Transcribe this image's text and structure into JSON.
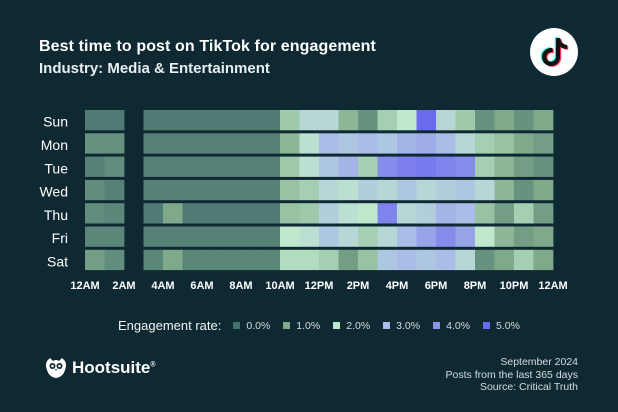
{
  "header": {
    "title": "Best time to post on TikTok for engagement",
    "subtitle": "Industry: Media & Entertainment"
  },
  "legend": {
    "title": "Engagement rate:",
    "items": [
      {
        "label": "0.0%",
        "color": "#43706f"
      },
      {
        "label": "1.0%",
        "color": "#7fa98a"
      },
      {
        "label": "2.0%",
        "color": "#bfe8cc"
      },
      {
        "label": "3.0%",
        "color": "#a9bde6"
      },
      {
        "label": "4.0%",
        "color": "#8d94ea"
      },
      {
        "label": "5.0%",
        "color": "#6a6aef"
      }
    ]
  },
  "brand": {
    "name": "Hootsuite",
    "reg": "®"
  },
  "footer": {
    "line1": "September 2024",
    "line2": "Posts from the last 365 days",
    "line3": "Source: Critical Truth"
  },
  "chart_data": {
    "type": "heatmap",
    "title": "Best time to post on TikTok for engagement",
    "y_categories": [
      "Sun",
      "Mon",
      "Tue",
      "Wed",
      "Thu",
      "Fri",
      "Sat"
    ],
    "x_tick_labels": [
      "12AM",
      "2AM",
      "4AM",
      "6AM",
      "8AM",
      "10AM",
      "12PM",
      "2PM",
      "4PM",
      "6PM",
      "8PM",
      "10PM",
      "12AM"
    ],
    "x_hours": 24,
    "missing_hours": [
      2
    ],
    "value_range": [
      0,
      5
    ],
    "unit": "%",
    "values": [
      [
        0.2,
        0.2,
        null,
        0.2,
        0.2,
        0.2,
        0.2,
        0.2,
        0.2,
        0.2,
        1.5,
        2.4,
        2.4,
        1.2,
        0.6,
        1.6,
        2.0,
        5.0,
        2.4,
        1.5,
        0.6,
        1.0,
        0.6,
        1.0
      ],
      [
        0.6,
        0.6,
        null,
        0.3,
        0.3,
        0.3,
        0.3,
        0.3,
        0.3,
        0.3,
        1.2,
        2.2,
        3.0,
        2.8,
        3.0,
        2.8,
        3.2,
        3.4,
        3.0,
        2.4,
        1.6,
        1.4,
        1.0,
        0.8
      ],
      [
        0.3,
        0.5,
        null,
        0.3,
        0.3,
        0.3,
        0.3,
        0.3,
        0.3,
        0.3,
        1.5,
        2.2,
        2.8,
        3.2,
        1.6,
        4.2,
        4.5,
        4.6,
        4.4,
        4.2,
        1.6,
        1.2,
        0.8,
        0.6
      ],
      [
        0.5,
        0.3,
        null,
        0.3,
        0.3,
        0.3,
        0.3,
        0.3,
        0.3,
        0.3,
        1.4,
        1.6,
        2.4,
        2.2,
        2.6,
        2.4,
        2.8,
        2.4,
        2.6,
        2.8,
        2.4,
        1.2,
        0.6,
        1.0
      ],
      [
        0.5,
        0.4,
        null,
        0.2,
        1.0,
        0.2,
        0.2,
        0.2,
        0.2,
        0.2,
        1.4,
        1.5,
        2.6,
        2.2,
        2.0,
        4.4,
        2.4,
        2.6,
        3.2,
        3.0,
        1.4,
        0.8,
        1.6,
        0.8
      ],
      [
        0.4,
        0.4,
        null,
        0.3,
        0.3,
        0.3,
        0.3,
        0.3,
        0.3,
        0.3,
        2.0,
        2.2,
        2.8,
        2.4,
        1.6,
        2.4,
        3.0,
        3.6,
        4.2,
        3.6,
        2.0,
        1.2,
        0.8,
        1.0
      ],
      [
        0.8,
        0.5,
        null,
        0.4,
        1.0,
        0.4,
        0.4,
        0.4,
        0.4,
        0.4,
        1.8,
        1.8,
        1.6,
        0.8,
        1.4,
        2.8,
        3.0,
        2.8,
        3.0,
        2.4,
        0.6,
        1.0,
        1.6,
        1.0
      ]
    ]
  }
}
